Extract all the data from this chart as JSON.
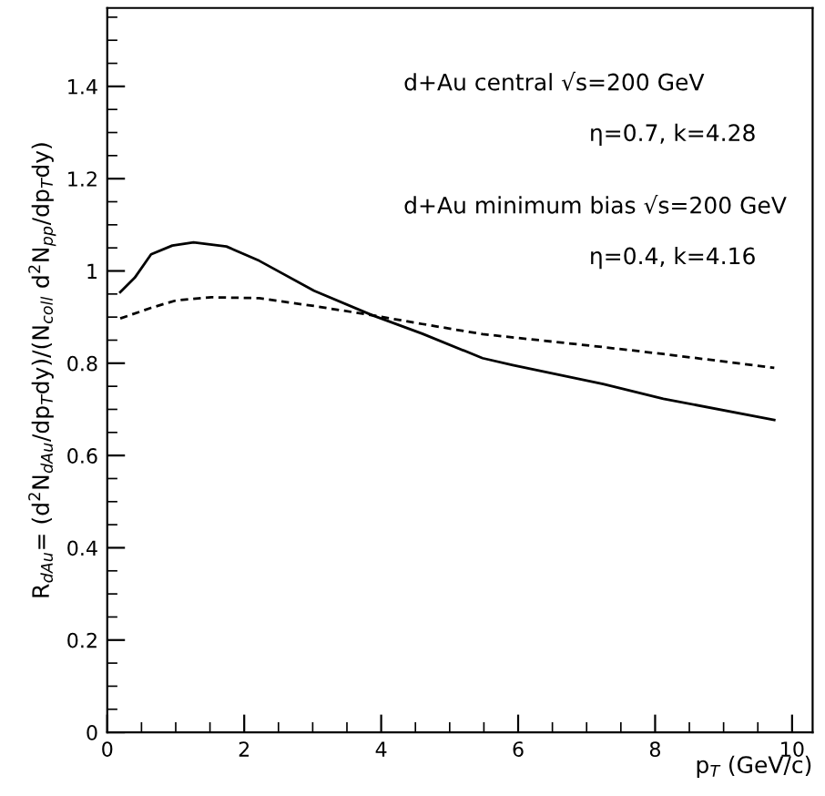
{
  "chart_data": {
    "type": "line",
    "xlabel": "p$_{T}$ (GeV/c)",
    "ylabel": "R$_{dAu}$= (d$^{2}$N$_{dAu}$/dp$_{T}$dy)/(N$_{coll}$ d$^{2}$N$_{pp}$/dp$_{T}$dy)",
    "xlim": [
      0,
      10.3
    ],
    "ylim": [
      0,
      1.57
    ],
    "xticks": [
      0,
      2,
      4,
      6,
      8,
      10
    ],
    "yticks": [
      0,
      0.2,
      0.4,
      0.6,
      0.8,
      1,
      1.2,
      1.4
    ],
    "grid": false,
    "legend": false,
    "marker": "none",
    "annotations": [
      "d+Au central √s=200 GeV",
      "η=0.7, k=4.28",
      "d+Au minimum bias √s=200 GeV",
      "η=0.4, k=4.16"
    ],
    "series": [
      {
        "color": "#000000",
        "line_style": "solid",
        "x": [
          0.19,
          0.4,
          0.64,
          0.95,
          1.26,
          1.74,
          2.22,
          3.02,
          3.87,
          4.6,
          5.48,
          5.92,
          7.24,
          8.12,
          9.74
        ],
        "values": [
          0.954,
          0.985,
          1.036,
          1.055,
          1.062,
          1.053,
          1.022,
          0.957,
          0.904,
          0.864,
          0.811,
          0.796,
          0.755,
          0.723,
          0.677
        ]
      },
      {
        "color": "#000000",
        "line_style": "dashed",
        "x": [
          0.19,
          0.64,
          1.0,
          1.52,
          2.22,
          3.02,
          3.87,
          4.6,
          5.48,
          6.3,
          7.24,
          8.12,
          9.74
        ],
        "values": [
          0.897,
          0.92,
          0.936,
          0.943,
          0.941,
          0.924,
          0.904,
          0.885,
          0.863,
          0.85,
          0.835,
          0.82,
          0.79
        ]
      }
    ]
  }
}
